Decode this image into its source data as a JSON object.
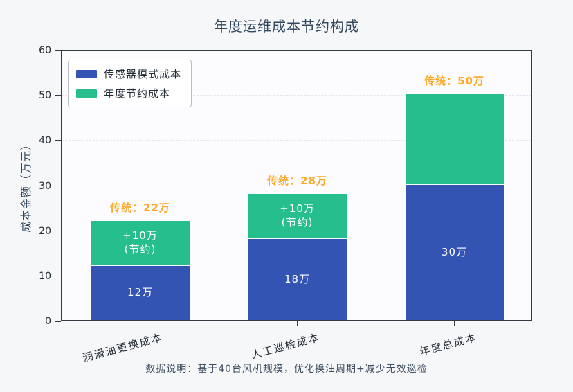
{
  "chart_data": {
    "type": "bar",
    "stacked": true,
    "title": "年度运维成本节约构成",
    "ylabel": "成本金额（万元）",
    "xlabel": "",
    "ylim": [
      0,
      60
    ],
    "yticks": [
      0,
      10,
      20,
      30,
      40,
      50,
      60
    ],
    "grid": "dashed-horizontal",
    "legend_position": "upper-left",
    "categories": [
      "润滑油更换成本",
      "人工巡检成本",
      "年度总成本"
    ],
    "series": [
      {
        "name": "传感器模式成本",
        "color": "#3454b4",
        "values": [
          12,
          18,
          30
        ],
        "bar_labels": [
          "12万",
          "18万",
          "30万"
        ]
      },
      {
        "name": "年度节约成本",
        "color": "#27be8e",
        "values": [
          10,
          10,
          20
        ],
        "bar_labels": [
          "+10万\n(节约)",
          "+10万\n(节约)",
          ""
        ]
      }
    ],
    "annotations": [
      "传统：22万",
      "传统：28万",
      "传统：50万"
    ],
    "annotation_color": "#ffa726",
    "footnote": "数据说明：基于40台风机规模，优化换油周期+减少无效巡检"
  }
}
